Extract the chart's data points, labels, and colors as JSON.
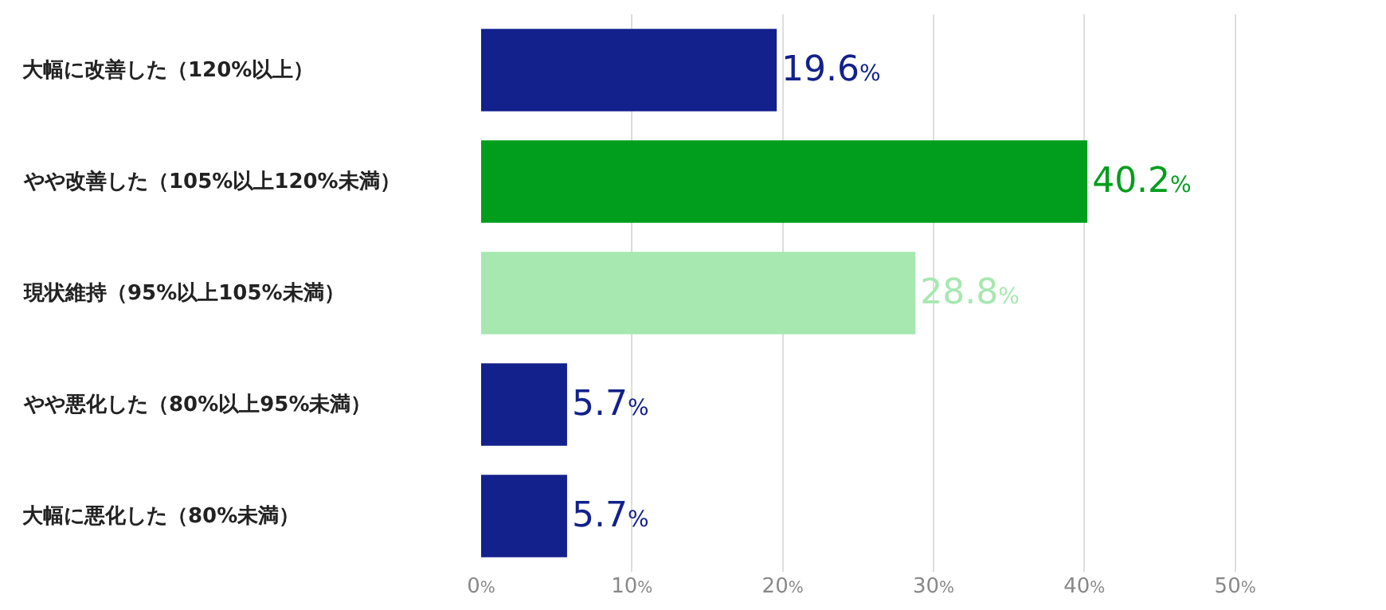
{
  "chart_data": {
    "type": "bar",
    "orientation": "horizontal",
    "categories": [
      "大幅に改善した（120%以上）",
      "やや改善した（105%以上120%未満）",
      "現状維持（95%以上105%未満）",
      "やや悪化した（80%以上95%未満）",
      "大幅に悪化した（80%未満）"
    ],
    "values": [
      19.6,
      40.2,
      28.8,
      5.7,
      5.7
    ],
    "colors": [
      "#12218b",
      "#009e1c",
      "#a6e8b0",
      "#12218b",
      "#12218b"
    ],
    "value_labels": [
      "19.6%",
      "40.2%",
      "28.8%",
      "5.7%",
      "5.7%"
    ],
    "xlim": [
      0,
      60
    ],
    "xticks": [
      {
        "value": 0,
        "label": "0%"
      },
      {
        "value": 10,
        "label": "10%"
      },
      {
        "value": 20,
        "label": "20%"
      },
      {
        "value": 30,
        "label": "30%"
      },
      {
        "value": 40,
        "label": "40%"
      },
      {
        "value": 50,
        "label": "50%"
      }
    ],
    "grid": "x"
  }
}
